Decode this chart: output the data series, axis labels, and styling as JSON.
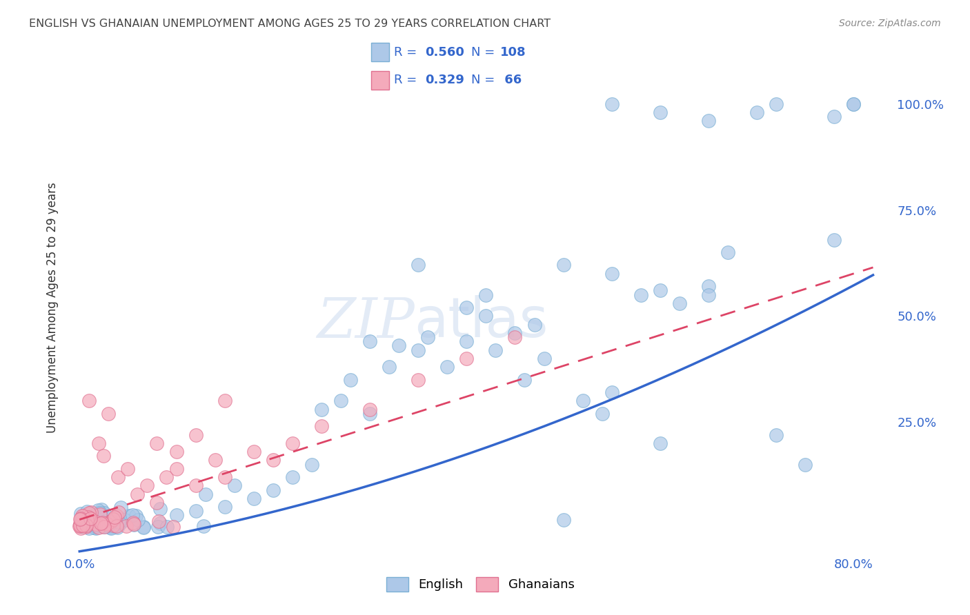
{
  "title": "ENGLISH VS GHANAIAN UNEMPLOYMENT AMONG AGES 25 TO 29 YEARS CORRELATION CHART",
  "source": "Source: ZipAtlas.com",
  "ylabel": "Unemployment Among Ages 25 to 29 years",
  "english_color": "#adc8e8",
  "english_edge": "#7aafd4",
  "ghanaian_color": "#f4aabb",
  "ghanaian_edge": "#e07090",
  "english_R": 0.56,
  "english_N": 108,
  "ghanaian_R": 0.329,
  "ghanaian_N": 66,
  "trend_english_color": "#3366cc",
  "trend_ghanaian_color": "#dd4466",
  "legend_label_color": "#3366cc",
  "tick_color": "#3366cc",
  "watermark_text": "ZIPAtlas",
  "watermark_color": "#c8d8ee",
  "background_color": "#ffffff",
  "grid_color": "#cccccc",
  "title_color": "#444444",
  "source_color": "#888888"
}
